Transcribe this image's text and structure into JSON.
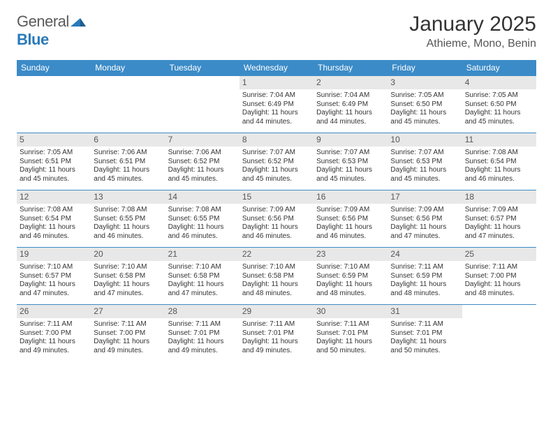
{
  "brand": {
    "word1": "General",
    "word2": "Blue",
    "logo_color": "#2a7ab9"
  },
  "title": "January 2025",
  "location": "Athieme, Mono, Benin",
  "colors": {
    "header_bg": "#3b8bc8",
    "header_text": "#ffffff",
    "daynum_bg": "#e8e8e8",
    "row_border": "#3b8bc8",
    "body_text": "#333333"
  },
  "day_headers": [
    "Sunday",
    "Monday",
    "Tuesday",
    "Wednesday",
    "Thursday",
    "Friday",
    "Saturday"
  ],
  "weeks": [
    [
      null,
      null,
      null,
      {
        "n": "1",
        "sr": "7:04 AM",
        "ss": "6:49 PM",
        "dl": "11 hours and 44 minutes."
      },
      {
        "n": "2",
        "sr": "7:04 AM",
        "ss": "6:49 PM",
        "dl": "11 hours and 44 minutes."
      },
      {
        "n": "3",
        "sr": "7:05 AM",
        "ss": "6:50 PM",
        "dl": "11 hours and 45 minutes."
      },
      {
        "n": "4",
        "sr": "7:05 AM",
        "ss": "6:50 PM",
        "dl": "11 hours and 45 minutes."
      }
    ],
    [
      {
        "n": "5",
        "sr": "7:05 AM",
        "ss": "6:51 PM",
        "dl": "11 hours and 45 minutes."
      },
      {
        "n": "6",
        "sr": "7:06 AM",
        "ss": "6:51 PM",
        "dl": "11 hours and 45 minutes."
      },
      {
        "n": "7",
        "sr": "7:06 AM",
        "ss": "6:52 PM",
        "dl": "11 hours and 45 minutes."
      },
      {
        "n": "8",
        "sr": "7:07 AM",
        "ss": "6:52 PM",
        "dl": "11 hours and 45 minutes."
      },
      {
        "n": "9",
        "sr": "7:07 AM",
        "ss": "6:53 PM",
        "dl": "11 hours and 45 minutes."
      },
      {
        "n": "10",
        "sr": "7:07 AM",
        "ss": "6:53 PM",
        "dl": "11 hours and 45 minutes."
      },
      {
        "n": "11",
        "sr": "7:08 AM",
        "ss": "6:54 PM",
        "dl": "11 hours and 46 minutes."
      }
    ],
    [
      {
        "n": "12",
        "sr": "7:08 AM",
        "ss": "6:54 PM",
        "dl": "11 hours and 46 minutes."
      },
      {
        "n": "13",
        "sr": "7:08 AM",
        "ss": "6:55 PM",
        "dl": "11 hours and 46 minutes."
      },
      {
        "n": "14",
        "sr": "7:08 AM",
        "ss": "6:55 PM",
        "dl": "11 hours and 46 minutes."
      },
      {
        "n": "15",
        "sr": "7:09 AM",
        "ss": "6:56 PM",
        "dl": "11 hours and 46 minutes."
      },
      {
        "n": "16",
        "sr": "7:09 AM",
        "ss": "6:56 PM",
        "dl": "11 hours and 46 minutes."
      },
      {
        "n": "17",
        "sr": "7:09 AM",
        "ss": "6:56 PM",
        "dl": "11 hours and 47 minutes."
      },
      {
        "n": "18",
        "sr": "7:09 AM",
        "ss": "6:57 PM",
        "dl": "11 hours and 47 minutes."
      }
    ],
    [
      {
        "n": "19",
        "sr": "7:10 AM",
        "ss": "6:57 PM",
        "dl": "11 hours and 47 minutes."
      },
      {
        "n": "20",
        "sr": "7:10 AM",
        "ss": "6:58 PM",
        "dl": "11 hours and 47 minutes."
      },
      {
        "n": "21",
        "sr": "7:10 AM",
        "ss": "6:58 PM",
        "dl": "11 hours and 47 minutes."
      },
      {
        "n": "22",
        "sr": "7:10 AM",
        "ss": "6:58 PM",
        "dl": "11 hours and 48 minutes."
      },
      {
        "n": "23",
        "sr": "7:10 AM",
        "ss": "6:59 PM",
        "dl": "11 hours and 48 minutes."
      },
      {
        "n": "24",
        "sr": "7:11 AM",
        "ss": "6:59 PM",
        "dl": "11 hours and 48 minutes."
      },
      {
        "n": "25",
        "sr": "7:11 AM",
        "ss": "7:00 PM",
        "dl": "11 hours and 48 minutes."
      }
    ],
    [
      {
        "n": "26",
        "sr": "7:11 AM",
        "ss": "7:00 PM",
        "dl": "11 hours and 49 minutes."
      },
      {
        "n": "27",
        "sr": "7:11 AM",
        "ss": "7:00 PM",
        "dl": "11 hours and 49 minutes."
      },
      {
        "n": "28",
        "sr": "7:11 AM",
        "ss": "7:01 PM",
        "dl": "11 hours and 49 minutes."
      },
      {
        "n": "29",
        "sr": "7:11 AM",
        "ss": "7:01 PM",
        "dl": "11 hours and 49 minutes."
      },
      {
        "n": "30",
        "sr": "7:11 AM",
        "ss": "7:01 PM",
        "dl": "11 hours and 50 minutes."
      },
      {
        "n": "31",
        "sr": "7:11 AM",
        "ss": "7:01 PM",
        "dl": "11 hours and 50 minutes."
      },
      null
    ]
  ],
  "labels": {
    "sunrise": "Sunrise:",
    "sunset": "Sunset:",
    "daylight": "Daylight:"
  }
}
